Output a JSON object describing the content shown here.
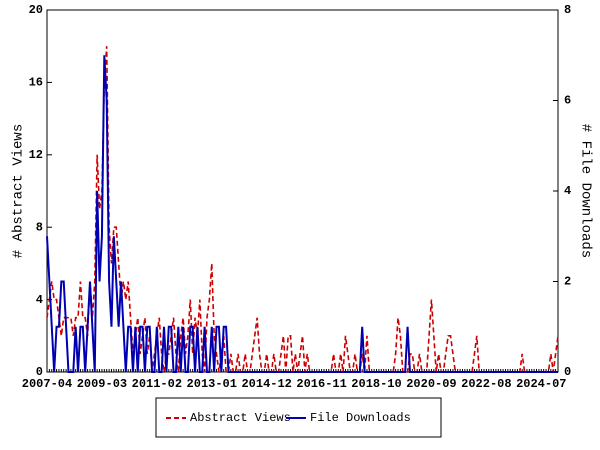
{
  "chart_data": {
    "type": "line",
    "ylabel": "# Abstract Views",
    "y2label": "# File Downloads",
    "categories": [
      "2007-04",
      null,
      null,
      null,
      null,
      null,
      null,
      null,
      null,
      null,
      null,
      null,
      null,
      null,
      null,
      null,
      null,
      null,
      null,
      null,
      null,
      null,
      null,
      "2009-03",
      null,
      null,
      null,
      null,
      null,
      null,
      null,
      null,
      null,
      null,
      null,
      null,
      null,
      null,
      null,
      null,
      null,
      null,
      null,
      null,
      null,
      null,
      "2011-02",
      null,
      null,
      null,
      null,
      null,
      null,
      null,
      null,
      null,
      null,
      null,
      null,
      null,
      null,
      null,
      null,
      null,
      null,
      null,
      null,
      null,
      null,
      "2013-01",
      null,
      null,
      null,
      null,
      null,
      null,
      null,
      null,
      null,
      null,
      null,
      null,
      null,
      null,
      null,
      null,
      null,
      null,
      null,
      null,
      null,
      null,
      "2014-12",
      null,
      null,
      null,
      null,
      null,
      null,
      null,
      null,
      null,
      null,
      null,
      null,
      null,
      null,
      null,
      null,
      null,
      null,
      null,
      null,
      null,
      null,
      "2016-11",
      null,
      null,
      null,
      null,
      null,
      null,
      null,
      null,
      null,
      null,
      null,
      null,
      null,
      null,
      null,
      null,
      null,
      null,
      null,
      null,
      null,
      null,
      "2018-10",
      null,
      null,
      null,
      null,
      null,
      null,
      null,
      null,
      null,
      null,
      null,
      null,
      null,
      null,
      null,
      null,
      null,
      null,
      null,
      null,
      null,
      null,
      "2020-09",
      null,
      null,
      null,
      null,
      null,
      null,
      null,
      null,
      null,
      null,
      null,
      null,
      null,
      null,
      null,
      null,
      null,
      null,
      null,
      null,
      null,
      null,
      "2022-08",
      null,
      null,
      null,
      null,
      null,
      null,
      null,
      null,
      null,
      null,
      null,
      null,
      null,
      null,
      null,
      null,
      null,
      null,
      null,
      null,
      null,
      null,
      "2024-07",
      null,
      null,
      null,
      null,
      null,
      null,
      null
    ],
    "series": [
      {
        "name": "Abstract Views",
        "color": "#cc0000",
        "dash": true,
        "axis": "y",
        "values": [
          3,
          4,
          5,
          4,
          4,
          3,
          2,
          3,
          3,
          3,
          3,
          2,
          3,
          3,
          5,
          3,
          3,
          2,
          5,
          3,
          5,
          12,
          9,
          10,
          16,
          18,
          8,
          6,
          8,
          8,
          6,
          4,
          5,
          4,
          5,
          3,
          1,
          2,
          3,
          1,
          2,
          3,
          1,
          2,
          0,
          1,
          2,
          3,
          1,
          0,
          1,
          1,
          2,
          3,
          1,
          0,
          2,
          3,
          1,
          2,
          4,
          1,
          3,
          2,
          4,
          1,
          0,
          3,
          4,
          6,
          2,
          1,
          0,
          1,
          2,
          0,
          0,
          1,
          0,
          0,
          1,
          0,
          0,
          1,
          0,
          0,
          1,
          2,
          3,
          1,
          0,
          0,
          1,
          0,
          0,
          1,
          0,
          0,
          1,
          2,
          0,
          2,
          2,
          0,
          1,
          0,
          1,
          2,
          0,
          1,
          0,
          0,
          0,
          0,
          0,
          0,
          0,
          0,
          0,
          0,
          1,
          0,
          0,
          1,
          0,
          2,
          1,
          0,
          0,
          1,
          0,
          0,
          1,
          0,
          2,
          0,
          0,
          0,
          0,
          0,
          0,
          0,
          0,
          0,
          0,
          0,
          1,
          3,
          2,
          0,
          0,
          0,
          1,
          1,
          0,
          0,
          1,
          0,
          0,
          0,
          2,
          4,
          2,
          0,
          1,
          0,
          0,
          1,
          2,
          2,
          1,
          0,
          0,
          0,
          0,
          0,
          0,
          0,
          0,
          1,
          2,
          0,
          0,
          0,
          0,
          0,
          0,
          0,
          0,
          0,
          0,
          0,
          0,
          0,
          0,
          0,
          0,
          0,
          0,
          1,
          0,
          0,
          0,
          0,
          0,
          0,
          0,
          0,
          0,
          0,
          0,
          1,
          0,
          1,
          2
        ]
      },
      {
        "name": "File Downloads",
        "color": "#0000b0",
        "dash": false,
        "axis": "y2",
        "values": [
          3,
          2,
          1,
          0,
          1,
          1,
          2,
          2,
          1,
          0,
          0,
          0,
          1,
          0,
          1,
          1,
          0,
          1,
          2,
          1,
          0,
          4,
          2,
          3,
          7,
          6,
          2,
          1,
          3,
          2,
          1,
          2,
          1,
          0,
          1,
          1,
          0,
          1,
          0,
          1,
          1,
          0,
          1,
          1,
          0,
          0,
          1,
          0,
          0,
          1,
          0,
          1,
          1,
          0,
          0,
          1,
          0,
          1,
          0,
          0,
          1,
          1,
          0,
          1,
          0,
          0,
          1,
          0,
          0,
          1,
          0,
          1,
          1,
          0,
          1,
          1,
          0,
          0,
          0,
          0,
          0,
          0,
          0,
          0,
          0,
          0,
          0,
          0,
          0,
          0,
          0,
          0,
          0,
          0,
          0,
          0,
          0,
          0,
          0,
          0,
          0,
          0,
          0,
          0,
          0,
          0,
          0,
          0,
          0,
          0,
          0,
          0,
          0,
          0,
          0,
          0,
          0,
          0,
          0,
          0,
          0,
          0,
          0,
          0,
          0,
          0,
          0,
          0,
          0,
          0,
          0,
          0,
          1,
          0,
          0,
          0,
          0,
          0,
          0,
          0,
          0,
          0,
          0,
          0,
          0,
          0,
          0,
          0,
          0,
          0,
          0,
          1,
          0,
          0,
          0,
          0,
          0,
          0,
          0,
          0,
          0,
          0,
          0,
          0,
          0,
          0,
          0,
          0,
          0,
          0,
          0,
          0,
          0,
          0,
          0,
          0,
          0,
          0,
          0,
          0,
          0,
          0,
          0,
          0,
          0,
          0,
          0,
          0,
          0,
          0,
          0,
          0,
          0,
          0,
          0,
          0,
          0,
          0,
          0,
          0,
          0,
          0,
          0,
          0,
          0,
          0,
          0,
          0,
          0,
          0,
          0,
          0,
          0,
          0,
          0
        ]
      }
    ],
    "ylim": [
      0,
      20
    ],
    "yticks": [
      0,
      4,
      8,
      12,
      16,
      20
    ],
    "y2lim": [
      0,
      8
    ],
    "y2ticks": [
      0,
      2,
      4,
      6,
      8
    ],
    "legend": "bottom"
  }
}
